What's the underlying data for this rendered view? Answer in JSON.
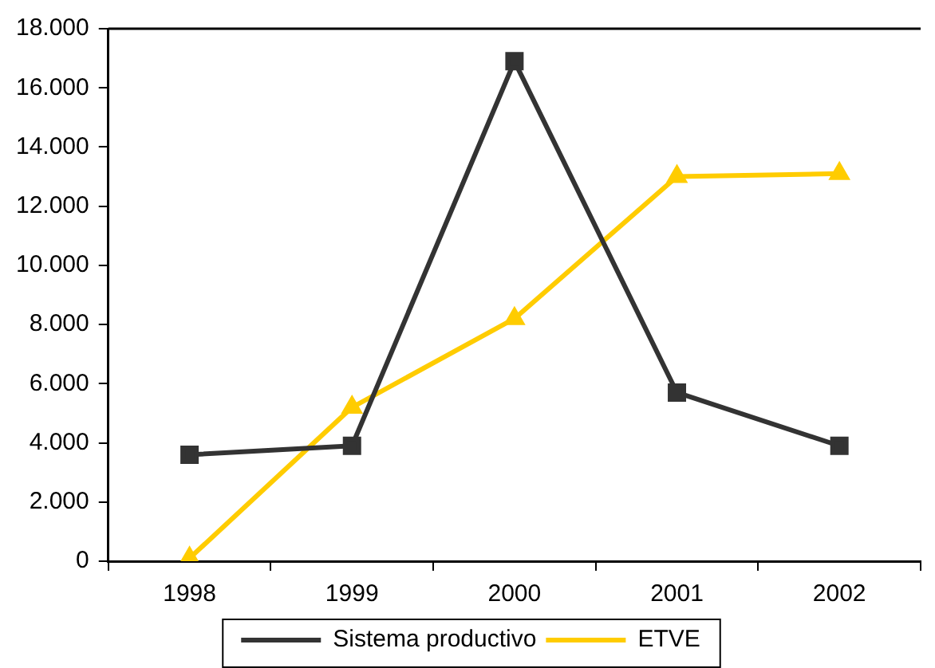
{
  "chart_data": {
    "type": "line",
    "categories": [
      "1998",
      "1999",
      "2000",
      "2001",
      "2002"
    ],
    "series": [
      {
        "name": "Sistema productivo",
        "color": "#333333",
        "values": [
          3600,
          3900,
          16900,
          5700,
          3900
        ],
        "marker": "square"
      },
      {
        "name": "ETVE",
        "color": "#ffcc00",
        "values": [
          100,
          5200,
          8200,
          13000,
          13100
        ],
        "marker": "triangle"
      }
    ],
    "ylim": [
      0,
      18000
    ],
    "yticks": [
      {
        "value": 0,
        "label": "0"
      },
      {
        "value": 2000,
        "label": "2.000"
      },
      {
        "value": 4000,
        "label": "4.000"
      },
      {
        "value": 6000,
        "label": "6.000"
      },
      {
        "value": 8000,
        "label": "8.000"
      },
      {
        "value": 10000,
        "label": "10.000"
      },
      {
        "value": 12000,
        "label": "12.000"
      },
      {
        "value": 14000,
        "label": "14.000"
      },
      {
        "value": 16000,
        "label": "16.000"
      },
      {
        "value": 18000,
        "label": "18.000"
      }
    ],
    "grid": false,
    "legend": "bottom",
    "line_style": "solid"
  }
}
